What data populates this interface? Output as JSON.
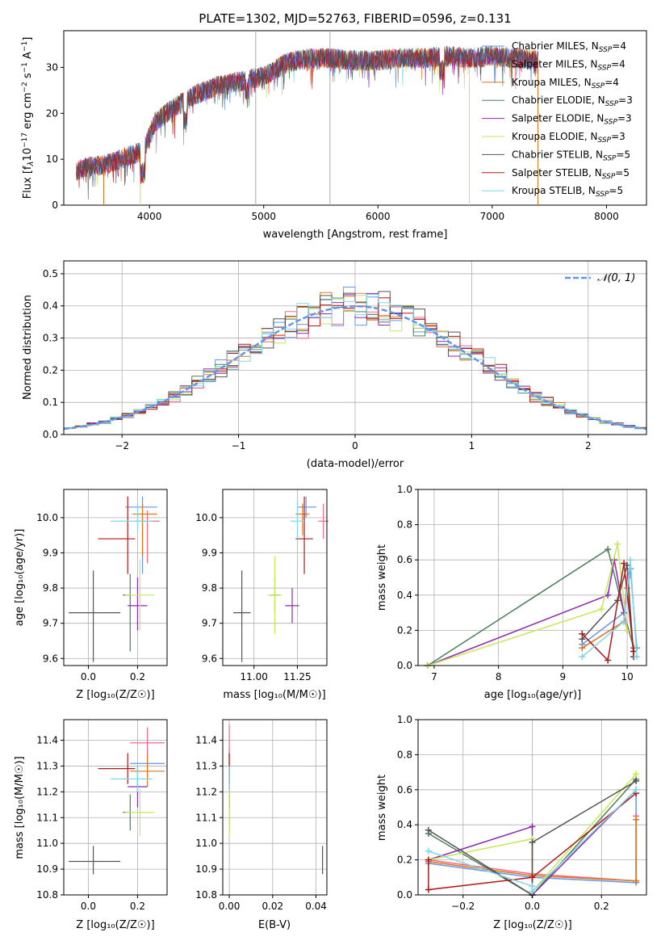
{
  "figure_title": "PLATE=1302, MJD=52763, FIBERID=0596, z=0.131",
  "series_colors": [
    "#6495ED",
    "#F06A87",
    "#D97A1E",
    "#4C7F5A",
    "#8E2AAE",
    "#C5E857",
    "#545454",
    "#B01818",
    "#7FD8E8"
  ],
  "legend_labels": [
    "Chabrier MILES, N",
    "Salpeter MILES, N",
    "Kroupa MILES, N",
    "Chabrier ELODIE, N",
    "Salpeter ELODIE, N",
    "Kroupa ELODIE, N",
    "Chabrier STELIB, N",
    "Salpeter STELIB, N",
    "Kroupa STELIB, N"
  ],
  "legend_subscript": "SSP",
  "legend_values": [
    "=4",
    "=4",
    "=4",
    "=3",
    "=3",
    "=3",
    "=5",
    "=5",
    "=5"
  ],
  "chart_data": [
    {
      "type": "line",
      "title": "PLATE=1302, MJD=52763, FIBERID=0596, z=0.131",
      "xlabel": "wavelength [Angstrom, rest frame]",
      "ylabel_parts": {
        "a": "Flux [f",
        "b": "λ",
        "c": "10",
        "d": "−17",
        "e": " erg cm",
        "f": "−2",
        "g": " s",
        "h": "−1",
        "i": " A",
        "j": "−1",
        "k": "]"
      },
      "xlim": [
        3250,
        8350
      ],
      "ylim": [
        0,
        38
      ],
      "xticks": [
        "4000",
        "5000",
        "6000",
        "7000",
        "8000"
      ],
      "yticks": [
        "0",
        "10",
        "20",
        "30"
      ],
      "legend_position": "upper right",
      "continuum": {
        "x": [
          3360,
          3500,
          3650,
          3800,
          3950,
          4050,
          4200,
          4400,
          4600,
          4800,
          5000,
          5200,
          5400,
          5600,
          5800,
          6000,
          6200,
          6400,
          6600,
          6800,
          7000,
          7200,
          7400
        ],
        "y": [
          7.5,
          8.5,
          9.0,
          10.5,
          12,
          18,
          21,
          24,
          26,
          27,
          28,
          31,
          32,
          32,
          31.5,
          31.5,
          32,
          32,
          32.5,
          32,
          32.5,
          32,
          31.5
        ]
      },
      "cutoffs": [
        {
          "series": "Salpeter MILES",
          "x_min": 3600,
          "x_max": 7400
        },
        {
          "series": "Kroupa MILES",
          "x_min": 3600,
          "x_max": 7400
        },
        {
          "series": "Kroupa ELODIE",
          "x_min": 3920,
          "x_max": 6800
        }
      ],
      "vertical_lines": [
        4930,
        5580
      ]
    },
    {
      "type": "histogram",
      "xlabel": "(data-model)/error",
      "ylabel": "Normed distribution",
      "xlim": [
        -2.5,
        2.5
      ],
      "ylim": [
        0,
        0.54
      ],
      "xticks": [
        "−2",
        "−1",
        "0",
        "1",
        "2"
      ],
      "yticks": [
        "0.0",
        "0.1",
        "0.2",
        "0.3",
        "0.4",
        "0.5"
      ],
      "reference": {
        "label": "𝒩(0, 1)",
        "mean": 0,
        "sigma": 1
      },
      "bins": {
        "start": -2.5,
        "width": 0.1,
        "count": 50
      },
      "amplitudes": [
        1.0,
        0.98,
        1.05,
        0.96,
        1.02,
        1.0,
        0.97,
        1.04,
        0.99,
        1.01,
        1.03,
        0.98,
        1.0,
        1.06,
        0.95,
        1.02,
        1.0,
        0.97,
        1.04,
        0.98,
        1.05,
        0.96,
        1.08,
        0.94,
        1.1,
        0.92,
        1.05,
        1.0,
        0.97,
        1.03,
        1.01,
        0.98,
        1.04,
        0.97,
        1.02,
        1.0,
        0.96,
        1.05,
        0.99,
        1.01,
        0.98,
        1.03,
        1.0,
        0.97,
        1.02,
        0.99,
        1.04,
        0.98,
        1.01,
        1.0
      ],
      "legend_position": "upper right"
    },
    {
      "type": "scatter",
      "panel": "age_vs_Z",
      "xlabel": "Z [log₁₀(Z/Z☉)]",
      "ylabel": "age  [log₁₀(age/yr)]",
      "xlim": [
        -0.1,
        0.32
      ],
      "ylim": [
        9.58,
        10.08
      ],
      "xticks": [
        "0.0",
        "0.2"
      ],
      "yticks": [
        "9.6",
        "9.7",
        "9.8",
        "9.9",
        "10.0"
      ],
      "points": [
        {
          "x": 0.22,
          "y": 10.03,
          "xerr": [
            0.07,
            0.06
          ],
          "yerr": [
            0.19,
            0.03
          ]
        },
        {
          "x": 0.24,
          "y": 9.99,
          "xerr": [
            0.05,
            0.05
          ],
          "yerr": [
            0.12,
            0.03
          ]
        },
        {
          "x": 0.22,
          "y": 10.01,
          "xerr": [
            0.04,
            0.06
          ],
          "yerr": [
            0.12,
            0.03
          ]
        },
        {
          "x": 0.17,
          "y": 9.78,
          "xerr": [
            0.03,
            0.0
          ],
          "yerr": [
            0.16,
            0.06
          ]
        },
        {
          "x": 0.2,
          "y": 9.75,
          "xerr": [
            0.04,
            0.04
          ],
          "yerr": [
            0.07,
            0.08
          ]
        },
        {
          "x": 0.21,
          "y": 9.78,
          "xerr": [
            0.06,
            0.06
          ],
          "yerr": [
            0.1,
            0.1
          ]
        },
        {
          "x": 0.02,
          "y": 9.73,
          "xerr": [
            0.1,
            0.11
          ],
          "yerr": [
            0.14,
            0.12
          ]
        },
        {
          "x": 0.16,
          "y": 9.94,
          "xerr": [
            0.12,
            0.03
          ],
          "yerr": [
            0.1,
            0.12
          ]
        },
        {
          "x": 0.2,
          "y": 9.99,
          "xerr": [
            0.11,
            0.06
          ],
          "yerr": [
            0.03,
            0.05
          ]
        }
      ]
    },
    {
      "type": "scatter",
      "panel": "age_vs_mass",
      "xlabel": "mass [log₁₀(M/M☉)]",
      "ylabel": "",
      "xlim": [
        10.82,
        11.42
      ],
      "ylim": [
        9.58,
        10.08
      ],
      "xticks": [
        "11.00",
        "11.25"
      ],
      "yticks": [
        "9.6",
        "9.7",
        "9.8",
        "9.9",
        "10.0"
      ],
      "points": [
        {
          "x": 11.3,
          "y": 10.03,
          "xerr": [
            0.05,
            0.06
          ],
          "yerr": [
            0.03,
            0.03
          ]
        },
        {
          "x": 11.4,
          "y": 9.99,
          "xerr": [
            0.03,
            0.03
          ],
          "yerr": [
            0.05,
            0.05
          ]
        },
        {
          "x": 11.28,
          "y": 10.01,
          "xerr": [
            0.04,
            0.04
          ],
          "yerr": [
            0.06,
            0.03
          ]
        },
        {
          "x": 11.12,
          "y": 9.78,
          "xerr": [
            0.03,
            0.03
          ],
          "yerr": [
            0.05,
            0.05
          ]
        },
        {
          "x": 11.22,
          "y": 9.75,
          "xerr": [
            0.04,
            0.04
          ],
          "yerr": [
            0.05,
            0.05
          ]
        },
        {
          "x": 11.12,
          "y": 9.78,
          "xerr": [
            0.04,
            0.04
          ],
          "yerr": [
            0.11,
            0.11
          ]
        },
        {
          "x": 10.93,
          "y": 9.73,
          "xerr": [
            0.05,
            0.05
          ],
          "yerr": [
            0.14,
            0.12
          ]
        },
        {
          "x": 11.29,
          "y": 9.94,
          "xerr": [
            0.05,
            0.05
          ],
          "yerr": [
            0.1,
            0.12
          ]
        },
        {
          "x": 11.25,
          "y": 9.99,
          "xerr": [
            0.04,
            0.04
          ],
          "yerr": [
            0.05,
            0.06
          ]
        }
      ]
    },
    {
      "type": "line",
      "panel": "weight_vs_age",
      "xlabel": "age  [log₁₀(age/yr)]",
      "ylabel": "mass weight",
      "xlim": [
        6.75,
        10.3
      ],
      "ylim": [
        0,
        1.0
      ],
      "xticks": [
        "7",
        "8",
        "9",
        "10"
      ],
      "yticks": [
        "0.0",
        "0.2",
        "0.4",
        "0.6",
        "0.8",
        "1.0"
      ],
      "series": [
        {
          "x": [
            9.3,
            9.95,
            10.05,
            10.15
          ],
          "y": [
            0.12,
            0.3,
            0.55,
            0.1
          ]
        },
        {
          "x": [
            9.3,
            9.95,
            10.0,
            10.1
          ],
          "y": [
            0.1,
            0.25,
            0.5,
            0.05
          ]
        },
        {
          "x": [
            9.3,
            9.95,
            10.0,
            10.1
          ],
          "y": [
            0.1,
            0.25,
            0.44,
            0.08
          ]
        },
        {
          "x": [
            6.9,
            9.7,
            9.95,
            10.1
          ],
          "y": [
            0.0,
            0.66,
            0.3,
            0.1
          ]
        },
        {
          "x": [
            6.9,
            9.7,
            9.8,
            10.0
          ],
          "y": [
            0.0,
            0.4,
            0.6,
            0.2
          ]
        },
        {
          "x": [
            6.9,
            9.6,
            9.85,
            10.0
          ],
          "y": [
            0.0,
            0.32,
            0.69,
            0.2
          ]
        },
        {
          "x": [
            9.3,
            9.85,
            10.0,
            10.1
          ],
          "y": [
            0.15,
            0.37,
            0.57,
            0.05
          ]
        },
        {
          "x": [
            9.3,
            9.7,
            9.95,
            10.1
          ],
          "y": [
            0.18,
            0.03,
            0.58,
            0.08
          ]
        },
        {
          "x": [
            9.3,
            9.95,
            10.05,
            10.15
          ],
          "y": [
            0.05,
            0.25,
            0.6,
            0.05
          ]
        }
      ]
    },
    {
      "type": "scatter",
      "panel": "mass_vs_Z",
      "xlabel": "Z [log₁₀(Z/Z☉)]",
      "ylabel": "mass [log₁₀(M/M☉)]",
      "xlim": [
        -0.1,
        0.32
      ],
      "ylim": [
        10.8,
        11.48
      ],
      "xticks": [
        "0.0",
        "0.2"
      ],
      "yticks": [
        "10.8",
        "10.9",
        "11.0",
        "11.1",
        "11.2",
        "11.3",
        "11.4"
      ],
      "points": [
        {
          "x": 0.24,
          "y": 11.31,
          "xerr": [
            0.07,
            0.07
          ],
          "yerr": [
            0.06,
            0.06
          ]
        },
        {
          "x": 0.24,
          "y": 11.39,
          "xerr": [
            0.07,
            0.07
          ],
          "yerr": [
            0.06,
            0.06
          ]
        },
        {
          "x": 0.24,
          "y": 11.28,
          "xerr": [
            0.07,
            0.07
          ],
          "yerr": [
            0.06,
            0.06
          ]
        },
        {
          "x": 0.17,
          "y": 11.12,
          "xerr": [
            0.03,
            0.0
          ],
          "yerr": [
            0.07,
            0.07
          ]
        },
        {
          "x": 0.2,
          "y": 11.22,
          "xerr": [
            0.04,
            0.04
          ],
          "yerr": [
            0.08,
            0.08
          ]
        },
        {
          "x": 0.21,
          "y": 11.12,
          "xerr": [
            0.06,
            0.06
          ],
          "yerr": [
            0.09,
            0.09
          ]
        },
        {
          "x": 0.02,
          "y": 10.93,
          "xerr": [
            0.1,
            0.11
          ],
          "yerr": [
            0.05,
            0.06
          ]
        },
        {
          "x": 0.16,
          "y": 11.29,
          "xerr": [
            0.12,
            0.03
          ],
          "yerr": [
            0.06,
            0.06
          ]
        },
        {
          "x": 0.2,
          "y": 11.25,
          "xerr": [
            0.11,
            0.06
          ],
          "yerr": [
            0.05,
            0.05
          ]
        }
      ]
    },
    {
      "type": "scatter",
      "panel": "mass_vs_ebv",
      "xlabel": "E(B-V)",
      "ylabel": "",
      "xlim": [
        -0.003,
        0.045
      ],
      "ylim": [
        10.8,
        11.48
      ],
      "xticks": [
        "0.00",
        "0.02",
        "0.04"
      ],
      "yticks": [
        "10.8",
        "10.9",
        "11.0",
        "11.1",
        "11.2",
        "11.3",
        "11.4"
      ],
      "points": [
        {
          "x": 0.0,
          "y": 11.31,
          "xerr": [
            0.0,
            0.0
          ],
          "yerr": [
            0.06,
            0.06
          ]
        },
        {
          "x": 0.0,
          "y": 11.39,
          "xerr": [
            0.0,
            0.0
          ],
          "yerr": [
            0.07,
            0.07
          ]
        },
        {
          "x": 0.0,
          "y": 11.28,
          "xerr": [
            0.0,
            0.0
          ],
          "yerr": [
            0.07,
            0.07
          ]
        },
        {
          "x": 0.0,
          "y": 11.12,
          "xerr": [
            0.0,
            0.0
          ],
          "yerr": [
            0.07,
            0.07
          ]
        },
        {
          "x": 0.0,
          "y": 11.22,
          "xerr": [
            0.0,
            0.0
          ],
          "yerr": [
            0.08,
            0.08
          ]
        },
        {
          "x": 0.0,
          "y": 11.12,
          "xerr": [
            0.0,
            0.0
          ],
          "yerr": [
            0.09,
            0.09
          ]
        },
        {
          "x": 0.043,
          "y": 10.93,
          "xerr": [
            0.0,
            0.0
          ],
          "yerr": [
            0.05,
            0.06
          ]
        },
        {
          "x": 0.0,
          "y": 11.29,
          "xerr": [
            0.0,
            0.0
          ],
          "yerr": [
            0.06,
            0.06
          ]
        },
        {
          "x": 0.0,
          "y": 11.25,
          "xerr": [
            0.0,
            0.0
          ],
          "yerr": [
            0.05,
            0.05
          ]
        }
      ]
    },
    {
      "type": "line",
      "panel": "weight_vs_Z",
      "xlabel": "Z [log₁₀(Z/Z☉)]",
      "ylabel": "mass weight",
      "xlim": [
        -0.33,
        0.33
      ],
      "ylim": [
        0,
        1.0
      ],
      "xticks": [
        "−0.2",
        "0.0",
        "0.2"
      ],
      "yticks": [
        "0.0",
        "0.2",
        "0.4",
        "0.6",
        "0.8",
        "1.0"
      ],
      "series": [
        {
          "x": [
            -0.3,
            0.0,
            0.3,
            0.3
          ],
          "y": [
            0.18,
            0.1,
            0.07,
            0.6
          ]
        },
        {
          "x": [
            -0.3,
            0.0,
            0.3,
            0.3
          ],
          "y": [
            0.2,
            0.12,
            0.08,
            0.45
          ]
        },
        {
          "x": [
            -0.3,
            0.0,
            0.3,
            0.3
          ],
          "y": [
            0.19,
            0.11,
            0.08,
            0.43
          ]
        },
        {
          "x": [
            -0.3,
            0.0,
            0.0,
            0.3
          ],
          "y": [
            0.35,
            0.0,
            0.0,
            0.66
          ]
        },
        {
          "x": [
            -0.3,
            0.0,
            0.0,
            0.3
          ],
          "y": [
            0.2,
            0.39,
            0.0,
            0.6
          ]
        },
        {
          "x": [
            -0.3,
            0.0,
            0.0,
            0.3
          ],
          "y": [
            0.2,
            0.32,
            0.02,
            0.69
          ]
        },
        {
          "x": [
            -0.3,
            0.0,
            0.0,
            0.3
          ],
          "y": [
            0.37,
            0.0,
            0.3,
            0.65
          ]
        },
        {
          "x": [
            -0.3,
            -0.3,
            0.0,
            0.0,
            0.3
          ],
          "y": [
            0.2,
            0.03,
            0.1,
            0.1,
            0.58
          ]
        },
        {
          "x": [
            -0.3,
            0.0,
            0.0,
            0.3
          ],
          "y": [
            0.25,
            0.05,
            0.02,
            0.6
          ]
        }
      ]
    }
  ]
}
